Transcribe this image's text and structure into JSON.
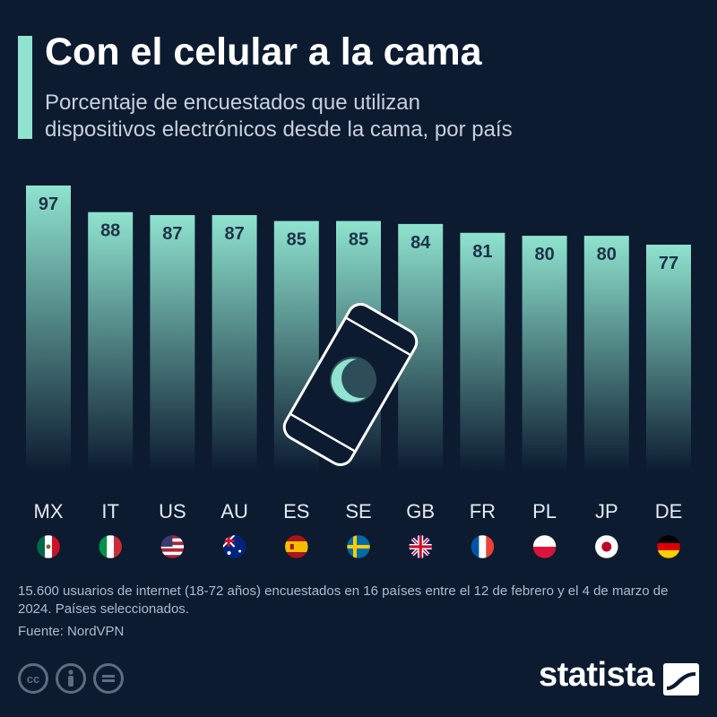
{
  "header": {
    "title": "Con el celular a la cama",
    "subtitle_lines": [
      "Porcentaje de encuestados que utilizan",
      "dispositivos electrónicos desde la cama, por país"
    ]
  },
  "chart_data": {
    "type": "bar",
    "categories": [
      "MX",
      "IT",
      "US",
      "AU",
      "ES",
      "SE",
      "GB",
      "FR",
      "PL",
      "JP",
      "DE"
    ],
    "values": [
      97,
      88,
      87,
      87,
      85,
      85,
      84,
      81,
      80,
      80,
      77
    ],
    "title": "Con el celular a la cama",
    "subtitle": "Porcentaje de encuestados que utilizan dispositivos electrónicos desde la cama, por país",
    "xlabel": "",
    "ylabel": "",
    "ylim": [
      0,
      100
    ],
    "grid": false,
    "data_labels": true,
    "bar_color_top": "#8fe3cf",
    "bar_color_bottom": "#0c1b30"
  },
  "footer": {
    "note": "15.600 usuarios de internet (18-72 años) encuestados en 16 países entre el 12 de febrero y el 4 de marzo de 2024. Países seleccionados.",
    "source": "Fuente: NordVPN",
    "brand": "statista",
    "license_icons": [
      "cc-icon",
      "person-icon",
      "equals-icon"
    ]
  },
  "colors": {
    "background": "#0c1b30",
    "accent": "#8fe3cf"
  }
}
